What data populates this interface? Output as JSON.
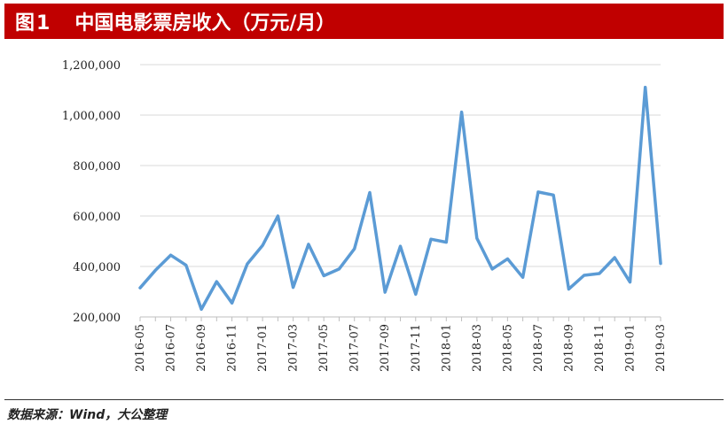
{
  "header": {
    "figure_label": "图1",
    "title": "中国电影票房收入（万元/月）"
  },
  "footer": {
    "source": "数据来源：Wind，大公整理"
  },
  "chart_data": {
    "type": "line",
    "title": "中国电影票房收入（万元/月）",
    "xlabel": "",
    "ylabel": "",
    "ylim": [
      200000,
      1200000
    ],
    "y_ticks": [
      200000,
      400000,
      600000,
      800000,
      1000000,
      1200000
    ],
    "y_tick_labels": [
      "200,000",
      "400,000",
      "600,000",
      "800,000",
      "1,000,000",
      "1,200,000"
    ],
    "grid": "horizontal",
    "x": [
      "2016-05",
      "2016-06",
      "2016-07",
      "2016-08",
      "2016-09",
      "2016-10",
      "2016-11",
      "2016-12",
      "2017-01",
      "2017-02",
      "2017-03",
      "2017-04",
      "2017-05",
      "2017-06",
      "2017-07",
      "2017-08",
      "2017-09",
      "2017-10",
      "2017-11",
      "2017-12",
      "2018-01",
      "2018-02",
      "2018-03",
      "2018-04",
      "2018-05",
      "2018-06",
      "2018-07",
      "2018-08",
      "2018-09",
      "2018-10",
      "2018-11",
      "2018-12",
      "2019-01",
      "2019-02",
      "2019-03"
    ],
    "x_tick_labels": [
      "2016-05",
      "2016-07",
      "2016-09",
      "2016-11",
      "2017-01",
      "2017-03",
      "2017-05",
      "2017-07",
      "2017-09",
      "2017-11",
      "2018-01",
      "2018-03",
      "2018-05",
      "2018-07",
      "2018-09",
      "2018-11",
      "2019-01",
      "2019-03"
    ],
    "series": [
      {
        "color": "#5b9bd5",
        "values": [
          315000,
          385000,
          445000,
          405000,
          230000,
          340000,
          255000,
          410000,
          483000,
          600000,
          317000,
          488000,
          363000,
          390000,
          470000,
          693000,
          298000,
          480000,
          290000,
          508000,
          496000,
          1012000,
          512000,
          390000,
          430000,
          357000,
          695000,
          683000,
          310000,
          365000,
          372000,
          435000,
          338000,
          1110000,
          412000
        ]
      }
    ]
  }
}
